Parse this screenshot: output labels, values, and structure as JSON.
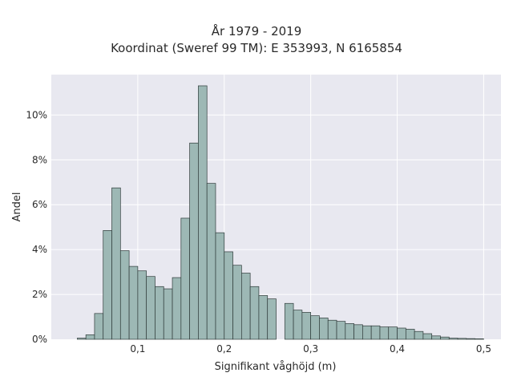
{
  "chart_data": {
    "type": "bar",
    "title": "År 1979 - 2019",
    "subtitle": "Koordinat (Sweref 99 TM): E 353993, N 6165854",
    "xlabel": "Signifikant våghöjd (m)",
    "ylabel": "Andel",
    "xlim": [
      0.0,
      0.52
    ],
    "ylim": [
      0,
      11.8
    ],
    "x_ticks": [
      0.1,
      0.2,
      0.3,
      0.4,
      0.5
    ],
    "x_tick_labels": [
      "0,1",
      "0,2",
      "0,3",
      "0,4",
      "0,5"
    ],
    "y_ticks": [
      0,
      2,
      4,
      6,
      8,
      10
    ],
    "y_tick_labels": [
      "0%",
      "2%",
      "4%",
      "6%",
      "8%",
      "10%"
    ],
    "grid": true,
    "bin_width": 0.01,
    "bin_starts": [
      0.03,
      0.04,
      0.05,
      0.06,
      0.07,
      0.08,
      0.09,
      0.1,
      0.11,
      0.12,
      0.13,
      0.14,
      0.15,
      0.16,
      0.17,
      0.18,
      0.19,
      0.2,
      0.21,
      0.22,
      0.23,
      0.24,
      0.25,
      0.26,
      0.27,
      0.28,
      0.29,
      0.3,
      0.31,
      0.32,
      0.33,
      0.34,
      0.35,
      0.36,
      0.37,
      0.38,
      0.39,
      0.4,
      0.41,
      0.42,
      0.43,
      0.44,
      0.45,
      0.46,
      0.47,
      0.48,
      0.49
    ],
    "values": [
      0.05,
      0.2,
      1.15,
      4.85,
      6.75,
      3.95,
      3.25,
      3.05,
      2.8,
      2.35,
      2.25,
      2.75,
      5.4,
      8.75,
      11.3,
      6.95,
      4.75,
      3.9,
      3.3,
      2.95,
      2.35,
      1.95,
      1.8,
      0.0,
      1.6,
      1.3,
      1.2,
      1.05,
      0.95,
      0.85,
      0.8,
      0.7,
      0.65,
      0.6,
      0.6,
      0.55,
      0.55,
      0.5,
      0.45,
      0.35,
      0.25,
      0.15,
      0.1,
      0.05,
      0.04,
      0.03,
      0.02
    ],
    "bar_color": "#9db8b5",
    "bar_edge_color": "#2f3b3a",
    "background_color": "#e8e8f0",
    "grid_color": "#ffffff"
  }
}
